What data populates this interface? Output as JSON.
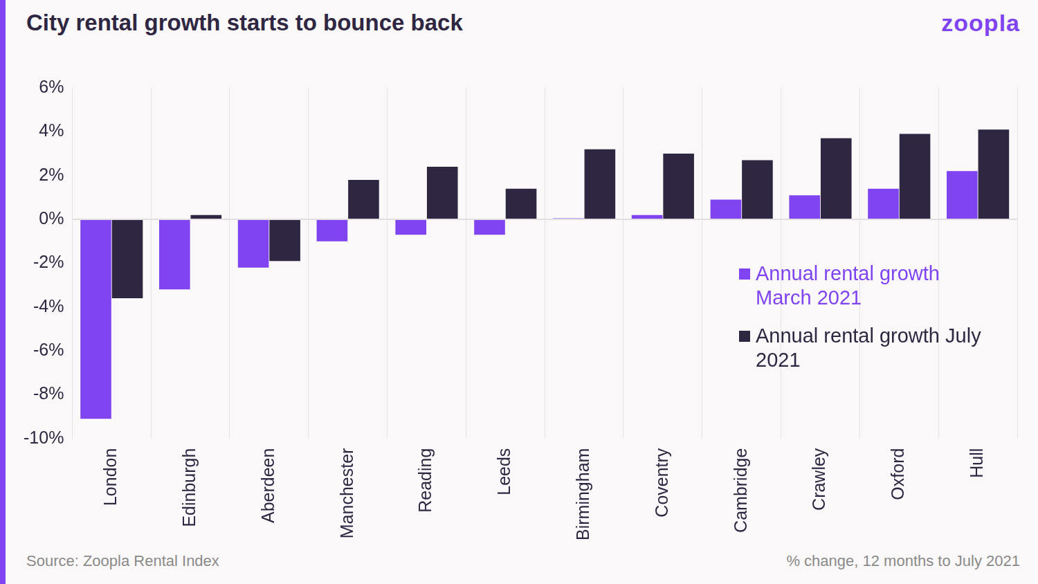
{
  "chart_data": {
    "type": "bar",
    "title": "City rental growth starts to bounce back",
    "logo": "zoopla",
    "source": "Source: Zoopla Rental Index",
    "note": "% change, 12 months to July 2021",
    "categories": [
      "London",
      "Edinburgh",
      "Aberdeen",
      "Manchester",
      "Reading",
      "Leeds",
      "Birmingham",
      "Coventry",
      "Cambridge",
      "Crawley",
      "Oxford",
      "Hull"
    ],
    "series": [
      {
        "name": "Annual rental growth March 2021",
        "color": "#7f44ef",
        "values": [
          -9.1,
          -3.2,
          -2.2,
          -1.0,
          -0.7,
          -0.7,
          0.05,
          0.2,
          0.9,
          1.1,
          1.4,
          2.2
        ]
      },
      {
        "name": "Annual rental growth July 2021",
        "color": "#2f2742",
        "values": [
          -3.6,
          0.2,
          -1.9,
          1.8,
          2.4,
          1.4,
          3.2,
          3.0,
          2.7,
          3.7,
          3.9,
          4.1
        ]
      }
    ],
    "ylim": [
      -10,
      6
    ],
    "yticks": [
      {
        "value": -10,
        "label": "-10%"
      },
      {
        "value": -8,
        "label": "-8%"
      },
      {
        "value": -6,
        "label": "-6%"
      },
      {
        "value": -4,
        "label": "-4%"
      },
      {
        "value": -2,
        "label": "-2%"
      },
      {
        "value": 0,
        "label": "0%"
      },
      {
        "value": 2,
        "label": "2%"
      },
      {
        "value": 4,
        "label": "4%"
      },
      {
        "value": 6,
        "label": "6%"
      }
    ],
    "grid": true,
    "legend": "right"
  }
}
